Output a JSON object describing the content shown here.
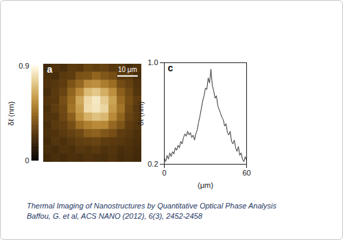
{
  "chart_data": [
    {
      "type": "heatmap",
      "panel_label": "a",
      "xlim": [
        0,
        48
      ],
      "ylim": [
        0,
        48
      ],
      "tick_labels": false,
      "scale_bar": {
        "value": 10,
        "label": "10 μm"
      },
      "colorbar_label": "δℓ (nm)",
      "colorbar_range": [
        0,
        0.9
      ],
      "colorbar_ticks": [
        0,
        0.9
      ],
      "cells": [
        [
          0.2,
          0.24,
          0.22,
          0.27,
          0.26,
          0.31,
          0.29,
          0.3,
          0.26,
          0.27,
          0.22,
          0.24
        ],
        [
          0.23,
          0.22,
          0.27,
          0.28,
          0.36,
          0.37,
          0.43,
          0.38,
          0.35,
          0.27,
          0.27,
          0.22
        ],
        [
          0.24,
          0.26,
          0.28,
          0.37,
          0.44,
          0.55,
          0.57,
          0.51,
          0.46,
          0.34,
          0.3,
          0.24
        ],
        [
          0.22,
          0.27,
          0.31,
          0.43,
          0.55,
          0.7,
          0.74,
          0.66,
          0.57,
          0.41,
          0.33,
          0.25
        ],
        [
          0.25,
          0.26,
          0.35,
          0.46,
          0.64,
          0.79,
          0.84,
          0.75,
          0.63,
          0.45,
          0.35,
          0.28
        ],
        [
          0.23,
          0.28,
          0.33,
          0.48,
          0.61,
          0.8,
          0.83,
          0.78,
          0.6,
          0.48,
          0.33,
          0.26
        ],
        [
          0.24,
          0.25,
          0.32,
          0.41,
          0.57,
          0.67,
          0.72,
          0.69,
          0.55,
          0.43,
          0.31,
          0.27
        ],
        [
          0.22,
          0.27,
          0.29,
          0.35,
          0.46,
          0.52,
          0.55,
          0.54,
          0.44,
          0.37,
          0.28,
          0.25
        ],
        [
          0.23,
          0.24,
          0.27,
          0.3,
          0.33,
          0.4,
          0.42,
          0.38,
          0.35,
          0.28,
          0.26,
          0.23
        ],
        [
          0.21,
          0.25,
          0.23,
          0.26,
          0.29,
          0.3,
          0.31,
          0.28,
          0.27,
          0.26,
          0.24,
          0.22
        ],
        [
          0.22,
          0.21,
          0.24,
          0.23,
          0.26,
          0.25,
          0.27,
          0.24,
          0.25,
          0.22,
          0.23,
          0.21
        ],
        [
          0.2,
          0.22,
          0.21,
          0.23,
          0.22,
          0.24,
          0.23,
          0.22,
          0.24,
          0.21,
          0.22,
          0.2
        ]
      ]
    },
    {
      "type": "line",
      "panel_label": "c",
      "x_label": "(μm)",
      "y_label": "δℓ (nm)",
      "xlim": [
        0,
        60
      ],
      "xticks": [
        0,
        60
      ],
      "ylim": [
        0.2,
        1.0
      ],
      "yticks": [
        {
          "value": 0.2,
          "label": "0.2"
        },
        {
          "value": 1.0,
          "label": "1.0"
        }
      ],
      "color": "#333333",
      "x": [
        0,
        1,
        2,
        3,
        4,
        5,
        6,
        7,
        8,
        9,
        10,
        11,
        12,
        13,
        14,
        15,
        16,
        17,
        18,
        19,
        20,
        21,
        22,
        23,
        24,
        25,
        26,
        27,
        28,
        29,
        30,
        31,
        32,
        33,
        34,
        35,
        36,
        37,
        38,
        39,
        40,
        41,
        42,
        43,
        44,
        45,
        46,
        47,
        48,
        49,
        50,
        51,
        52,
        53,
        54,
        55,
        56,
        57,
        58,
        59,
        60
      ],
      "values": [
        0.25,
        0.22,
        0.27,
        0.24,
        0.29,
        0.26,
        0.3,
        0.28,
        0.33,
        0.31,
        0.35,
        0.33,
        0.38,
        0.36,
        0.41,
        0.44,
        0.42,
        0.46,
        0.43,
        0.45,
        0.41,
        0.43,
        0.39,
        0.44,
        0.47,
        0.53,
        0.58,
        0.64,
        0.7,
        0.74,
        0.8,
        0.79,
        0.88,
        0.84,
        0.95,
        0.82,
        0.78,
        0.72,
        0.74,
        0.66,
        0.63,
        0.6,
        0.57,
        0.55,
        0.5,
        0.52,
        0.45,
        0.43,
        0.46,
        0.38,
        0.36,
        0.39,
        0.33,
        0.3,
        0.34,
        0.27,
        0.29,
        0.24,
        0.22,
        0.26,
        0.23
      ]
    }
  ],
  "caption": {
    "title": "Thermal Imaging of Nanostructures by Quantitative Optical Phase Analysis",
    "citation": "Baffou, G. et al, ACS NANO (2012), 6(3), 2452-2458"
  }
}
